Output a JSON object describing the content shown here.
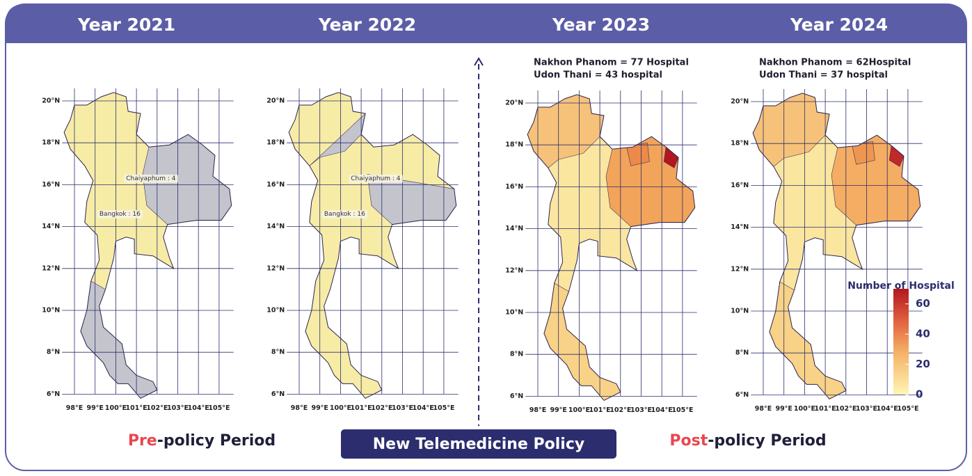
{
  "header": {
    "years": [
      "Year 2021",
      "Year 2022",
      "Year 2023",
      "Year 2024"
    ]
  },
  "maps": [
    {
      "labels": [
        "Chaiyaphum : 4",
        "Bangkok : 16"
      ]
    },
    {
      "labels": [
        "Chaiyaphum : 4",
        "Bangkok : 16"
      ]
    },
    {
      "notes": [
        "Nakhon Phanom = 77 Hospital",
        "Udon Thani = 43 hospital"
      ]
    },
    {
      "notes": [
        "Nakhon Phanom = 62Hospital",
        "Udon Thani = 37 hospital"
      ]
    }
  ],
  "lat_ticks": [
    {
      "value": 20,
      "label": "20°N"
    },
    {
      "value": 18,
      "label": "18°N"
    },
    {
      "value": 16,
      "label": "16°N"
    },
    {
      "value": 14,
      "label": "14°N"
    },
    {
      "value": 12,
      "label": "12°N"
    },
    {
      "value": 10,
      "label": "10°N"
    },
    {
      "value": 8,
      "label": "8°N"
    },
    {
      "value": 6,
      "label": "6°N"
    }
  ],
  "lon_ticks": [
    {
      "value": 98,
      "label": "98°E"
    },
    {
      "value": 99,
      "label": "99°E"
    },
    {
      "value": 100,
      "label": "100°E"
    },
    {
      "value": 101,
      "label": "101°E"
    },
    {
      "value": 102,
      "label": "102°E"
    },
    {
      "value": 103,
      "label": "103°E"
    },
    {
      "value": 104,
      "label": "104°E"
    },
    {
      "value": 105,
      "label": "105°E"
    }
  ],
  "legend": {
    "title": "Number of Hospital",
    "range": [
      0,
      70
    ],
    "ticks": [
      0,
      20,
      40,
      60
    ]
  },
  "footer": {
    "pre_highlight": "Pre",
    "pre_rest": "-policy Period",
    "policy": "New Telemedicine Policy",
    "post_highlight": "Post",
    "post_rest": "-policy Period"
  }
}
